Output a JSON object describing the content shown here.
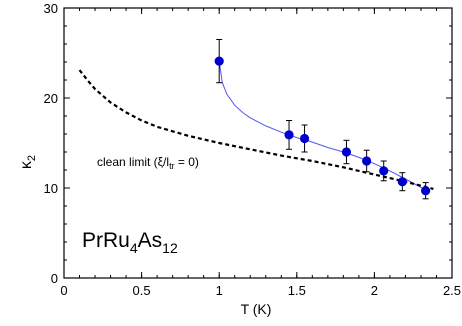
{
  "chart_data": {
    "type": "scatter",
    "xlabel": "T (K)",
    "ylabel": "κ",
    "ylabel_sub": "2",
    "xlim": [
      0,
      2.5
    ],
    "ylim": [
      0,
      30
    ],
    "xticks": [
      {
        "value": 0,
        "label": "0"
      },
      {
        "value": 0.5,
        "label": "0.5"
      },
      {
        "value": 1,
        "label": "1"
      },
      {
        "value": 1.5,
        "label": "1.5"
      },
      {
        "value": 2,
        "label": "2"
      },
      {
        "value": 2.5,
        "label": "2.5"
      }
    ],
    "yticks": [
      {
        "value": 0,
        "label": "0"
      },
      {
        "value": 10,
        "label": "10"
      },
      {
        "value": 20,
        "label": "20"
      },
      {
        "value": 30,
        "label": "30"
      }
    ],
    "grid": false,
    "colors": {
      "points": "#0000cc",
      "fit": "#5555ee",
      "clean": "#000000"
    },
    "series": [
      {
        "kind": "points_with_errorbars",
        "x": [
          1.0,
          1.45,
          1.55,
          1.82,
          1.95,
          2.06,
          2.18,
          2.33
        ],
        "y": [
          24.1,
          15.9,
          15.5,
          14.0,
          13.0,
          11.9,
          10.7,
          9.7
        ],
        "yerr": [
          2.4,
          1.6,
          1.5,
          1.3,
          1.2,
          1.1,
          1.0,
          0.9
        ]
      },
      {
        "kind": "fit_curve",
        "x": [
          1.0,
          1.02,
          1.05,
          1.1,
          1.15,
          1.2,
          1.3,
          1.4,
          1.5,
          1.6,
          1.7,
          1.8,
          1.9,
          2.0,
          2.1,
          2.2,
          2.33
        ],
        "y": [
          24.1,
          21.7,
          20.4,
          19.2,
          18.4,
          17.8,
          16.9,
          16.2,
          15.6,
          15.1,
          14.5,
          14.0,
          13.4,
          12.7,
          11.9,
          11.0,
          9.8
        ]
      },
      {
        "kind": "clean_limit",
        "x": [
          0.1,
          0.15,
          0.2,
          0.3,
          0.4,
          0.5,
          0.6,
          0.8,
          1.0,
          1.2,
          1.4,
          1.6,
          1.8,
          2.0,
          2.2,
          2.38
        ],
        "y": [
          23.1,
          22.0,
          21.0,
          19.5,
          18.4,
          17.5,
          16.8,
          15.8,
          15.0,
          14.3,
          13.6,
          13.0,
          12.3,
          11.5,
          10.7,
          9.9
        ]
      }
    ],
    "annotations": {
      "clean_limit": {
        "prefix": "clean limit (ξ/l",
        "sub": "tr",
        "suffix": " = 0)"
      },
      "compound": {
        "p1": "PrRu",
        "s1": "4",
        "p2": "As",
        "s2": "12"
      }
    }
  }
}
